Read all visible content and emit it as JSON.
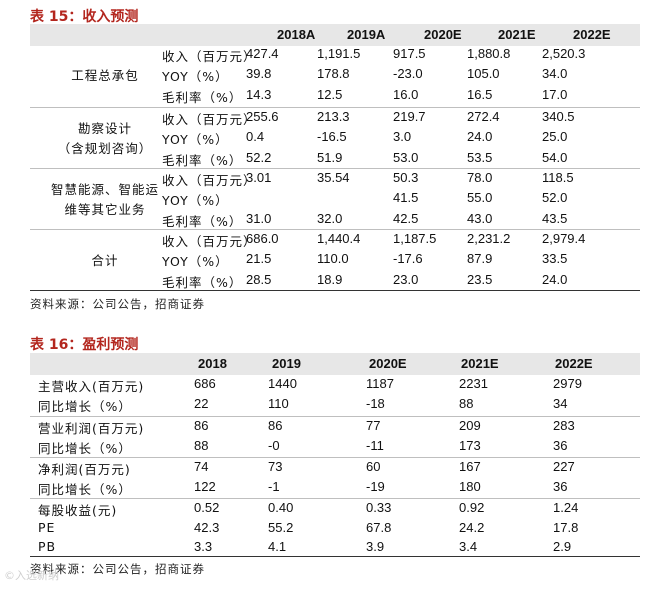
{
  "table15": {
    "title": "表 15：收入预测",
    "columns": [
      "2018A",
      "2019A",
      "2020E",
      "2021E",
      "2022E"
    ],
    "groups": [
      {
        "name_lines": [
          "工程总承包"
        ],
        "rows": [
          {
            "label": "收入（百万元）",
            "values": [
              "427.4",
              "1,191.5",
              "917.5",
              "1,880.8",
              "2,520.3"
            ]
          },
          {
            "label": "YOY（%）",
            "values": [
              "39.8",
              "178.8",
              "-23.0",
              "105.0",
              "34.0"
            ]
          },
          {
            "label": "毛利率（%）",
            "values": [
              "14.3",
              "12.5",
              "16.0",
              "16.5",
              "17.0"
            ]
          }
        ]
      },
      {
        "name_lines": [
          "勘察设计",
          "（含规划咨询）"
        ],
        "rows": [
          {
            "label": "收入（百万元）",
            "values": [
              "255.6",
              "213.3",
              "219.7",
              "272.4",
              "340.5"
            ]
          },
          {
            "label": "YOY（%）",
            "values": [
              "0.4",
              "-16.5",
              "3.0",
              "24.0",
              "25.0"
            ]
          },
          {
            "label": "毛利率（%）",
            "values": [
              "52.2",
              "51.9",
              "53.0",
              "53.5",
              "54.0"
            ]
          }
        ]
      },
      {
        "name_lines": [
          "智慧能源、智能运",
          "维等其它业务"
        ],
        "rows": [
          {
            "label": "收入（百万元）",
            "values": [
              "3.01",
              "35.54",
              "50.3",
              "78.0",
              "118.5"
            ]
          },
          {
            "label": "YOY（%）",
            "values": [
              "",
              "",
              "41.5",
              "55.0",
              "52.0"
            ]
          },
          {
            "label": "毛利率（%）",
            "values": [
              "31.0",
              "32.0",
              "42.5",
              "43.0",
              "43.5"
            ]
          }
        ]
      },
      {
        "name_lines": [
          "合计"
        ],
        "rows": [
          {
            "label": "收入（百万元）",
            "values": [
              "686.0",
              "1,440.4",
              "1,187.5",
              "2,231.2",
              "2,979.4"
            ]
          },
          {
            "label": "YOY（%）",
            "values": [
              "21.5",
              "110.0",
              "-17.6",
              "87.9",
              "33.5"
            ]
          },
          {
            "label": "毛利率（%）",
            "values": [
              "28.5",
              "18.9",
              "23.0",
              "23.5",
              "24.0"
            ]
          }
        ]
      }
    ],
    "source": "资料来源：公司公告，招商证券"
  },
  "table16": {
    "title": "表 16：盈利预测",
    "columns": [
      "2018",
      "2019",
      "2020E",
      "2021E",
      "2022E"
    ],
    "groups": [
      {
        "rows": [
          {
            "label": "主营收入(百万元)",
            "values": [
              "686",
              "1440",
              "1187",
              "2231",
              "2979"
            ]
          },
          {
            "label": "同比增长（%）",
            "values": [
              "22",
              "110",
              "-18",
              "88",
              "34"
            ]
          }
        ]
      },
      {
        "rows": [
          {
            "label": "营业利润(百万元)",
            "values": [
              "86",
              "86",
              "77",
              "209",
              "283"
            ]
          },
          {
            "label": "同比增长（%）",
            "values": [
              "88",
              "-0",
              "-11",
              "173",
              "36"
            ]
          }
        ]
      },
      {
        "rows": [
          {
            "label": "净利润(百万元)",
            "values": [
              "74",
              "73",
              "60",
              "167",
              "227"
            ]
          },
          {
            "label": "同比增长（%）",
            "values": [
              "122",
              "-1",
              "-19",
              "180",
              "36"
            ]
          }
        ]
      },
      {
        "rows": [
          {
            "label": "每股收益(元)",
            "values": [
              "0.52",
              "0.40",
              "0.33",
              "0.92",
              "1.24"
            ]
          },
          {
            "label": "PE",
            "values": [
              "42.3",
              "55.2",
              "67.8",
              "24.2",
              "17.8"
            ]
          },
          {
            "label": "PB",
            "values": [
              "3.3",
              "4.1",
              "3.9",
              "3.4",
              "2.9"
            ]
          }
        ]
      }
    ],
    "source": "资料来源：公司公告，招商证券"
  },
  "watermark": "入选新纳"
}
